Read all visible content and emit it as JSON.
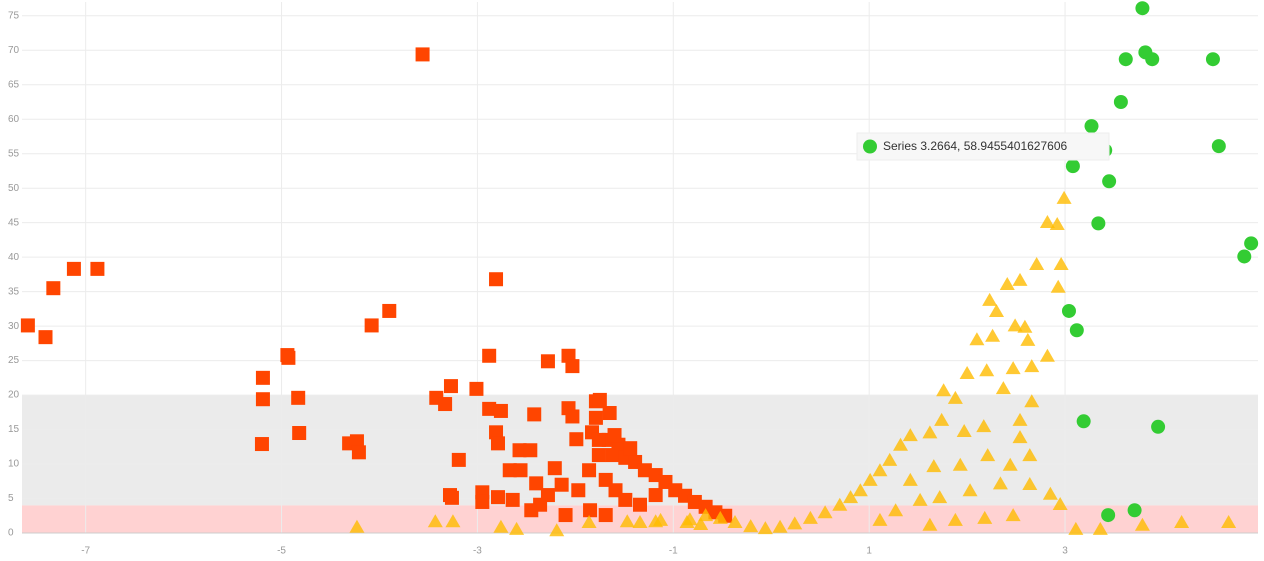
{
  "chart_data": {
    "type": "scatter",
    "xlim": [
      -7.65,
      4.97
    ],
    "ylim": [
      0,
      77
    ],
    "xticks": [
      -7,
      -5,
      -3,
      -1,
      1,
      3
    ],
    "yticks": [
      0,
      5,
      10,
      15,
      20,
      25,
      30,
      35,
      40,
      45,
      50,
      55,
      60,
      65,
      70,
      75
    ],
    "grid": true,
    "bands": [
      {
        "from": 4,
        "to": 20,
        "color": "#ebebeb"
      },
      {
        "from": 0,
        "to": 4,
        "color": "#ffd2d2"
      }
    ],
    "tooltip": "Series 3.2664, 58.9455401627606",
    "series": [
      {
        "color": "#ff4500",
        "marker": "square",
        "x": [
          -7.59,
          -7.41,
          -7.33,
          -7.12,
          -6.88,
          -3.56,
          -2.81,
          -4.08,
          -3.9,
          -5.19,
          -5.19,
          -5.2,
          -4.94,
          -4.93,
          -4.83,
          -4.82,
          -4.31,
          -4.23,
          -4.21,
          -3.27,
          -3.42,
          -3.33,
          -3.19,
          -3.01,
          -2.88,
          -2.28,
          -2.07,
          -2.03,
          -3.28,
          -3.26,
          -2.95,
          -2.95,
          -2.88,
          -2.76,
          -2.81,
          -2.79,
          -2.42,
          -2.79,
          -2.64,
          -2.67,
          -2.56,
          -2.57,
          -2.46,
          -2.4,
          -2.45,
          -2.21,
          -2.07,
          -2.03,
          -1.99,
          -1.79,
          -1.75,
          -1.65,
          -1.79,
          -1.83,
          -2.14,
          -1.97,
          -1.86,
          -1.76,
          -1.66,
          -1.56,
          -1.62,
          -1.49,
          -1.39,
          -1.29,
          -1.18,
          -1.08,
          -0.98,
          -0.88,
          -0.78,
          -0.67,
          -0.57,
          -0.47,
          -1.69,
          -1.59,
          -1.49,
          -1.34,
          -1.18,
          -1.85,
          -1.69,
          -2.1,
          -2.28,
          -2.36,
          -1.76,
          -1.6,
          -1.44
        ],
        "values": [
          30.1,
          28.4,
          35.5,
          38.3,
          38.3,
          69.4,
          36.8,
          30.1,
          32.2,
          22.5,
          19.4,
          12.9,
          25.8,
          25.4,
          19.6,
          14.5,
          13.0,
          13.3,
          11.7,
          21.3,
          19.6,
          18.7,
          10.6,
          20.9,
          25.7,
          24.9,
          25.7,
          24.2,
          5.5,
          5.1,
          5.9,
          4.5,
          18.0,
          17.7,
          14.6,
          13.0,
          17.2,
          5.2,
          4.8,
          9.1,
          9.1,
          12.0,
          12.0,
          7.2,
          3.3,
          9.4,
          18.1,
          16.9,
          13.6,
          19.1,
          19.3,
          17.4,
          16.7,
          14.6,
          7.0,
          6.2,
          9.1,
          11.3,
          13.5,
          12.8,
          11.3,
          10.9,
          10.3,
          9.1,
          8.4,
          7.4,
          6.2,
          5.4,
          4.5,
          3.8,
          3.0,
          2.5,
          7.7,
          6.2,
          4.8,
          4.1,
          5.5,
          3.3,
          2.6,
          2.6,
          5.5,
          4.1,
          13.5,
          14.2,
          12.3
        ]
      },
      {
        "color": "#ffbc00",
        "marker": "triangle",
        "x": [
          -4.23,
          -3.43,
          -3.25,
          -2.76,
          -2.6,
          -2.19,
          -1.86,
          -1.47,
          -1.18,
          -0.86,
          -0.72,
          3.11,
          3.79,
          4.19,
          4.67,
          3.36,
          2.99,
          2.82,
          2.92,
          2.71,
          2.96,
          2.54,
          2.41,
          2.93,
          2.23,
          2.3,
          2.49,
          2.59,
          2.62,
          2.1,
          2.26,
          2.82,
          2.66,
          2.47,
          2.2,
          2.0,
          2.37,
          1.76,
          1.88,
          2.54,
          2.66,
          2.17,
          1.97,
          1.74,
          1.62,
          2.54,
          2.44,
          2.64,
          2.21,
          1.93,
          1.66,
          2.34,
          2.64,
          2.85,
          2.95,
          2.03,
          1.72,
          2.47,
          2.18,
          1.88,
          1.62,
          1.32,
          1.42,
          1.21,
          1.11,
          1.01,
          0.91,
          0.81,
          0.7,
          0.55,
          0.4,
          0.24,
          0.09,
          -0.06,
          -0.21,
          -0.37,
          -0.52,
          -0.67,
          -0.83,
          -1.13,
          -1.34,
          1.42,
          1.52,
          1.27,
          1.11
        ],
        "values": [
          0.9,
          1.7,
          1.7,
          0.9,
          0.6,
          0.4,
          1.6,
          1.7,
          1.7,
          1.6,
          1.3,
          0.6,
          1.2,
          1.6,
          1.6,
          0.6,
          48.6,
          45.1,
          44.8,
          39.0,
          39.0,
          36.7,
          36.1,
          35.7,
          33.8,
          32.2,
          30.1,
          29.9,
          28.0,
          28.1,
          28.6,
          25.7,
          24.2,
          23.9,
          23.6,
          23.2,
          21.0,
          20.7,
          19.6,
          16.4,
          19.1,
          15.5,
          14.8,
          16.4,
          14.6,
          13.9,
          9.9,
          11.3,
          11.3,
          9.9,
          9.7,
          7.2,
          7.1,
          5.7,
          4.2,
          6.2,
          5.2,
          2.6,
          2.2,
          1.9,
          1.2,
          12.8,
          14.2,
          10.6,
          9.1,
          7.7,
          6.2,
          5.2,
          4.1,
          3.0,
          2.2,
          1.4,
          0.9,
          0.7,
          1.0,
          1.6,
          2.2,
          2.6,
          2.0,
          1.9,
          1.6,
          7.7,
          4.8,
          3.3,
          1.9
        ]
      },
      {
        "color": "#33cc33",
        "marker": "circle",
        "x": [
          3.79,
          3.82,
          3.62,
          3.89,
          4.51,
          3.57,
          3.27,
          3.41,
          4.57,
          3.08,
          3.45,
          3.34,
          4.9,
          4.83,
          3.04,
          3.12,
          3.19,
          3.95,
          3.44,
          3.71
        ],
        "values": [
          76.1,
          69.7,
          68.7,
          68.7,
          68.7,
          62.5,
          59.0,
          55.5,
          56.1,
          53.2,
          51.0,
          44.9,
          42.0,
          40.1,
          32.2,
          29.4,
          16.2,
          15.4,
          2.6,
          3.3
        ]
      }
    ]
  }
}
